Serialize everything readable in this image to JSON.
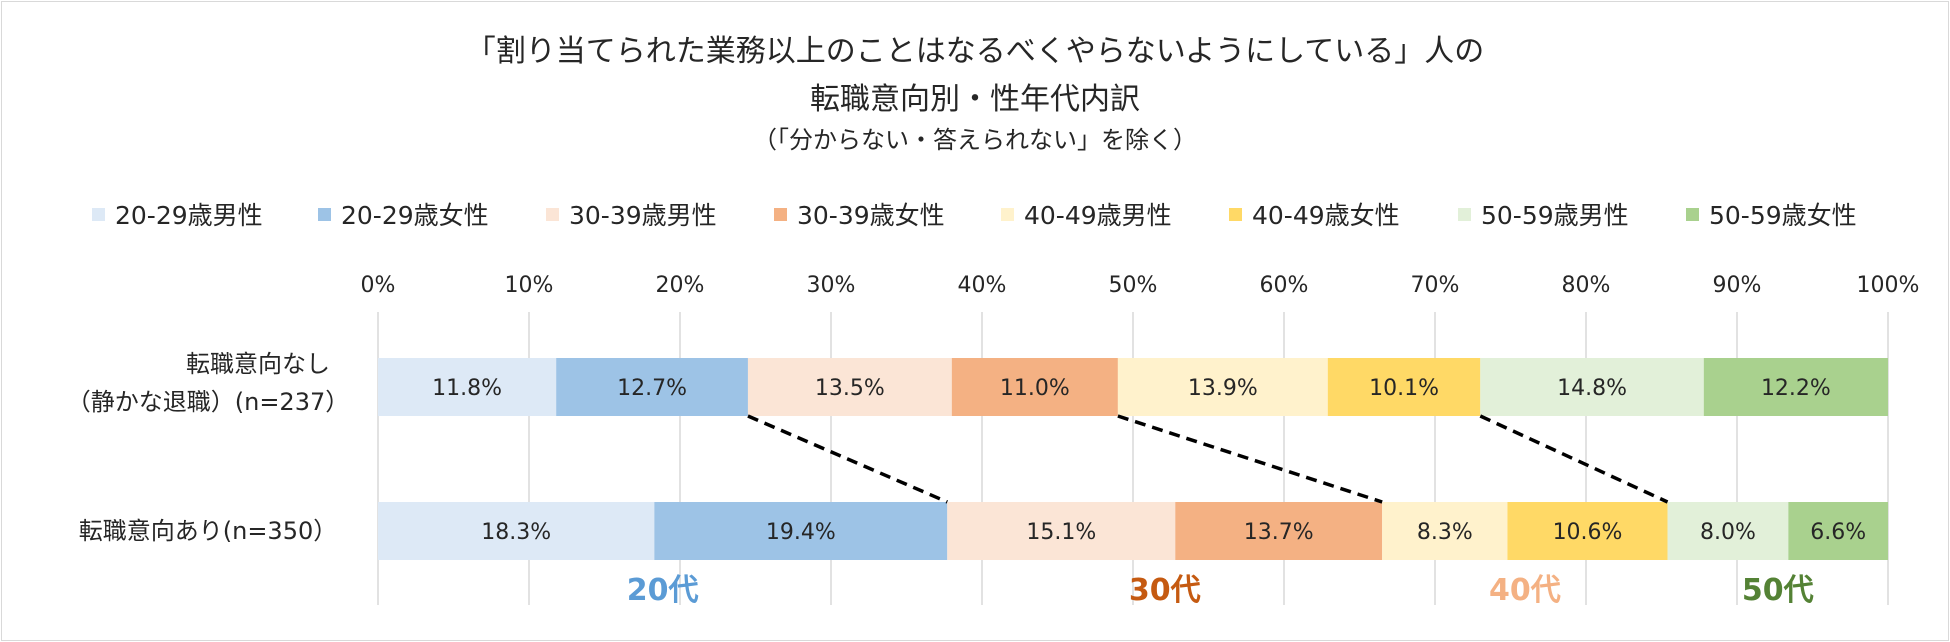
{
  "title": {
    "line1": "「割り当てられた業務以上のことはなるべくやらないようにしている」人の",
    "line2": "転職意向別・性年代内訳",
    "line3": "（「分からない・答えられない」を除く）"
  },
  "chart_data": {
    "type": "bar",
    "stacked": "100%",
    "orientation": "horizontal",
    "xlim": [
      0,
      100
    ],
    "x_ticks": [
      "0%",
      "10%",
      "20%",
      "30%",
      "40%",
      "50%",
      "60%",
      "70%",
      "80%",
      "90%",
      "100%"
    ],
    "grid": true,
    "legend_position": "top",
    "categories": [
      {
        "line1": "転職意向なし",
        "line2": "（静かな退職）(n=237）"
      },
      {
        "line1": "転職意向あり(n=350）",
        "line2": ""
      }
    ],
    "series": [
      {
        "name": "20-29歳男性",
        "color": "#dde9f6",
        "values": [
          11.8,
          18.3
        ],
        "labels": [
          "11.8%",
          "18.3%"
        ]
      },
      {
        "name": "20-29歳女性",
        "color": "#9dc3e6",
        "values": [
          12.7,
          19.4
        ],
        "labels": [
          "12.7%",
          "19.4%"
        ]
      },
      {
        "name": "30-39歳男性",
        "color": "#fbe5d6",
        "values": [
          13.5,
          15.1
        ],
        "labels": [
          "13.5%",
          "15.1%"
        ]
      },
      {
        "name": "30-39歳女性",
        "color": "#f4b183",
        "values": [
          11.0,
          13.7
        ],
        "labels": [
          "11.0%",
          "13.7%"
        ]
      },
      {
        "name": "40-49歳男性",
        "color": "#fff2cc",
        "values": [
          13.9,
          8.3
        ],
        "labels": [
          "13.9%",
          "8.3%"
        ]
      },
      {
        "name": "40-49歳女性",
        "color": "#ffd966",
        "values": [
          10.1,
          10.6
        ],
        "labels": [
          "10.1%",
          "10.6%"
        ]
      },
      {
        "name": "50-59歳男性",
        "color": "#e2f0d9",
        "values": [
          14.8,
          8.0
        ],
        "labels": [
          "14.8%",
          "8.0%"
        ]
      },
      {
        "name": "50-59歳女性",
        "color": "#a9d18e",
        "values": [
          12.2,
          6.6
        ],
        "labels": [
          "12.2%",
          "6.6%"
        ]
      }
    ],
    "connector_lines": "dashed lines linking age-group boundaries between the two bars",
    "age_group_labels": [
      {
        "text": "20代",
        "color": "#5b9bd5"
      },
      {
        "text": "30代",
        "color": "#c55a11"
      },
      {
        "text": "40代",
        "color": "#f4b183"
      },
      {
        "text": "50代",
        "color": "#548235"
      }
    ]
  }
}
